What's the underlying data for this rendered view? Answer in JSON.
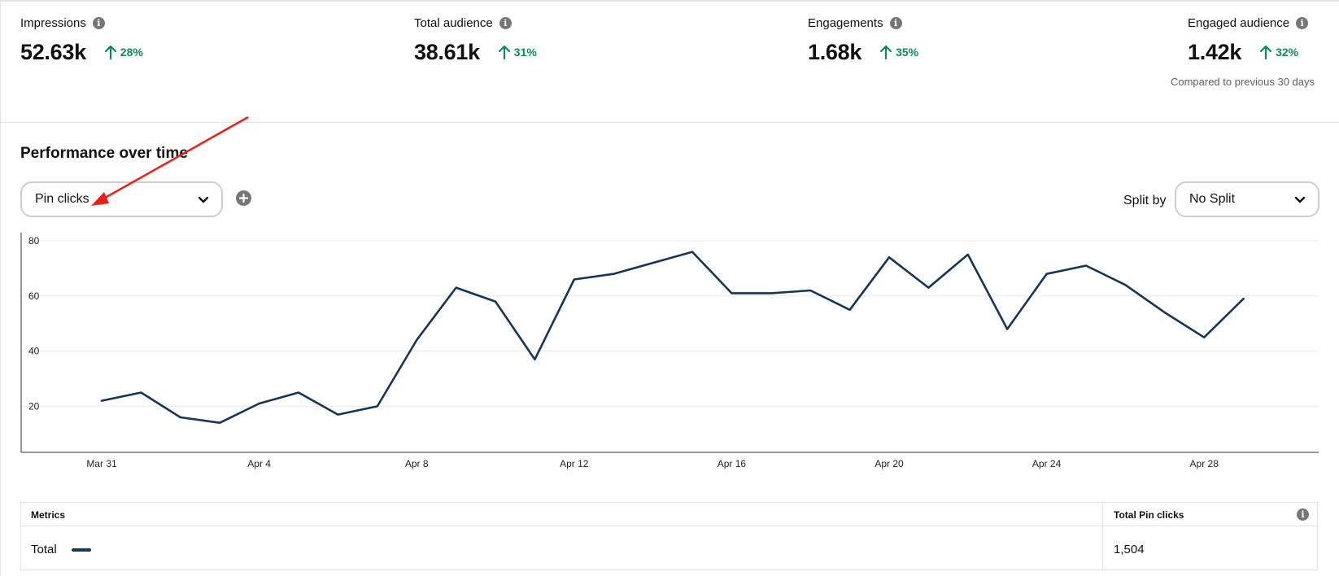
{
  "metrics": [
    {
      "label": "Impressions",
      "value": "52.63k",
      "change": "28%"
    },
    {
      "label": "Total audience",
      "value": "38.61k",
      "change": "31%"
    },
    {
      "label": "Engagements",
      "value": "1.68k",
      "change": "35%"
    },
    {
      "label": "Engaged audience",
      "value": "1.42k",
      "change": "32%"
    }
  ],
  "compare_text": "Compared to previous 30 days",
  "section_title": "Performance over time",
  "metric_select": {
    "value": "Pin clicks"
  },
  "split": {
    "label": "Split by",
    "value": "No Split"
  },
  "colors": {
    "accent_green": "#0b8a5c",
    "line": "#15355b",
    "annotation_arrow": "#e8201a"
  },
  "chart_data": {
    "type": "line",
    "x": [
      "Mar 31",
      "Apr 1",
      "Apr 2",
      "Apr 3",
      "Apr 4",
      "Apr 5",
      "Apr 6",
      "Apr 7",
      "Apr 8",
      "Apr 9",
      "Apr 10",
      "Apr 11",
      "Apr 12",
      "Apr 13",
      "Apr 14",
      "Apr 15",
      "Apr 16",
      "Apr 17",
      "Apr 18",
      "Apr 19",
      "Apr 20",
      "Apr 21",
      "Apr 22",
      "Apr 23",
      "Apr 24",
      "Apr 25",
      "Apr 26",
      "Apr 27",
      "Apr 28",
      "Apr 29"
    ],
    "x_tick_labels": [
      "Mar 31",
      "Apr 4",
      "Apr 8",
      "Apr 12",
      "Apr 16",
      "Apr 20",
      "Apr 24",
      "Apr 28"
    ],
    "series": [
      {
        "values": [
          22,
          25,
          16,
          14,
          21,
          25,
          17,
          20,
          44,
          63,
          58,
          37,
          66,
          68,
          72,
          76,
          61,
          61,
          62,
          55,
          74,
          63,
          75,
          48,
          68,
          71,
          64,
          54,
          45,
          59
        ]
      }
    ],
    "ylim": [
      0,
      80
    ],
    "y_ticks": [
      20,
      40,
      60,
      80
    ],
    "grid": true
  },
  "table": {
    "col1_header": "Metrics",
    "col2_header": "Total Pin clicks",
    "row_label": "Total",
    "row_value": "1,504"
  }
}
